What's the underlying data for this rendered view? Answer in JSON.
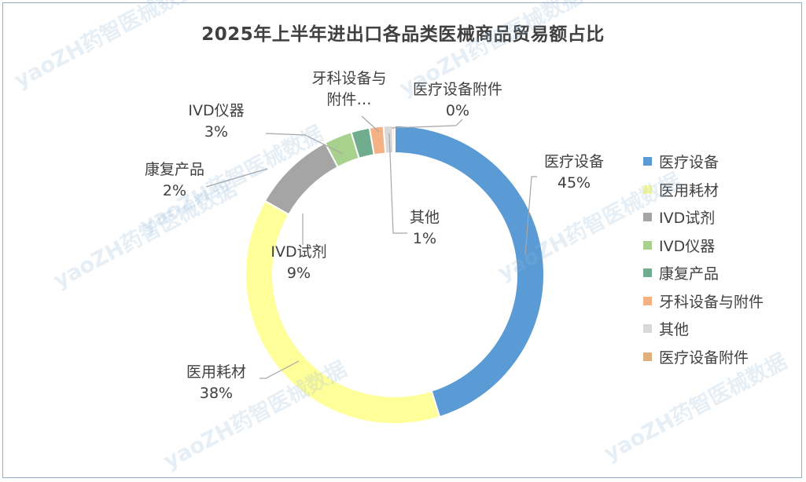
{
  "chart_data": {
    "type": "pie",
    "variant": "donut",
    "title": "2025年上半年进出口各品类医械商品贸易额占比",
    "categories": [
      "医疗设备",
      "医用耗材",
      "IVD试剂",
      "IVD仪器",
      "康复产品",
      "牙科设备与附件",
      "其他",
      "医疗设备附件"
    ],
    "values": [
      45,
      38,
      9,
      3,
      2,
      1.5,
      1,
      0.2
    ],
    "labels": [
      {
        "name": "医疗设备",
        "pct": "45%"
      },
      {
        "name": "医用耗材",
        "pct": "38%"
      },
      {
        "name": "IVD试剂",
        "pct": "9%"
      },
      {
        "name": "IVD仪器",
        "pct": "3%"
      },
      {
        "name": "康复产品",
        "pct": "2%"
      },
      {
        "name": "牙科设备与附件…",
        "pct": ""
      },
      {
        "name": "其他",
        "pct": "1%"
      },
      {
        "name": "医疗设备附件",
        "pct": "0%"
      }
    ],
    "colors": [
      "#5b9bd5",
      "#ffff99",
      "#a5a5a5",
      "#a9d18e",
      "#70ad8f",
      "#f4b183",
      "#d9d9d9",
      "#e0b07c"
    ],
    "legend_position": "right"
  },
  "watermark": "yaoZH药智医械数据"
}
